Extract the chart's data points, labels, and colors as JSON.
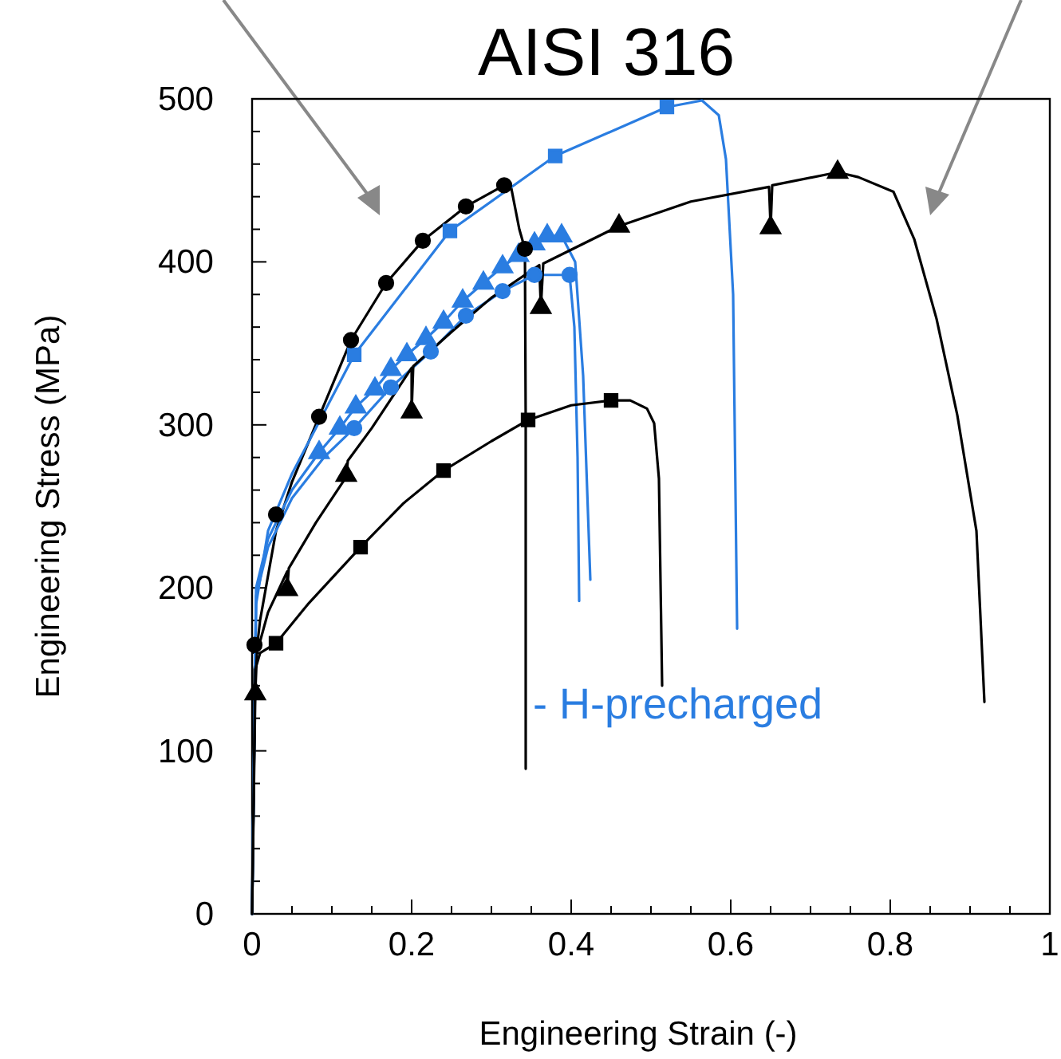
{
  "chart_data": {
    "type": "line",
    "title": "AISI 316",
    "xlabel": "Engineering Strain (-)",
    "ylabel": "Engineering Stress (MPa)",
    "annotations": [
      "- H-precharged"
    ],
    "xlim": [
      0,
      1
    ],
    "ylim": [
      0,
      500
    ],
    "grid": false,
    "line_style": "solid",
    "xticks": [
      0,
      {
        "value": 0.05,
        "label": null
      },
      0.2,
      {
        "value": 0.1,
        "label": null
      },
      {
        "value": 0.15,
        "label": null
      },
      {
        "value": 0.25,
        "label": null
      },
      {
        "value": 0.3,
        "label": null
      },
      {
        "value": 0.35,
        "label": null
      },
      0.4,
      {
        "value": 0.45,
        "label": null
      },
      {
        "value": 0.5,
        "label": null
      },
      {
        "value": 0.55,
        "label": null
      },
      0.6,
      {
        "value": 0.65,
        "label": null
      },
      {
        "value": 0.7,
        "label": null
      },
      {
        "value": 0.75,
        "label": null
      },
      0.8,
      {
        "value": 0.85,
        "label": null
      },
      {
        "value": 0.9,
        "label": null
      },
      {
        "value": 0.95,
        "label": null
      },
      1
    ],
    "yticks": [
      0,
      {
        "value": 20,
        "label": null
      },
      {
        "value": 40,
        "label": null
      },
      {
        "value": 60,
        "label": null
      },
      {
        "value": 80,
        "label": null
      },
      100,
      {
        "value": 120,
        "label": null
      },
      {
        "value": 140,
        "label": null
      },
      {
        "value": 160,
        "label": null
      },
      {
        "value": 180,
        "label": null
      },
      200,
      {
        "value": 220,
        "label": null
      },
      {
        "value": 240,
        "label": null
      },
      {
        "value": 260,
        "label": null
      },
      {
        "value": 280,
        "label": null
      },
      300,
      {
        "value": 320,
        "label": null
      },
      {
        "value": 340,
        "label": null
      },
      {
        "value": 360,
        "label": null
      },
      {
        "value": 380,
        "label": null
      },
      400,
      {
        "value": 420,
        "label": null
      },
      {
        "value": 440,
        "label": null
      },
      {
        "value": 460,
        "label": null
      },
      {
        "value": 480,
        "label": null
      },
      500
    ],
    "series": [
      {
        "marker": "none",
        "color": "#000000",
        "x": [
          0,
          0.003,
          0.01,
          0.03,
          0.05,
          0.084,
          0.124,
          0.168,
          0.214,
          0.268,
          0.316,
          0.325,
          0.335,
          0.342,
          0.343,
          0.343
        ],
        "values": [
          0,
          150,
          180,
          235,
          265,
          305,
          352,
          387,
          413,
          434,
          447,
          445,
          420,
          408,
          300,
          89
        ]
      },
      {
        "type": "scatter",
        "marker": "circle",
        "color": "#000000",
        "x": [
          0.003,
          0.03,
          0.084,
          0.124,
          0.168,
          0.214,
          0.268,
          0.316,
          0.342
        ],
        "values": [
          165,
          245,
          305,
          352,
          387,
          413,
          434,
          447,
          408
        ]
      },
      {
        "marker": "none",
        "color": "#2a7de1",
        "x": [
          0,
          0.005,
          0.02,
          0.05,
          0.128,
          0.248,
          0.38,
          0.52,
          0.564,
          0.585,
          0.594,
          0.603,
          0.608
        ],
        "values": [
          0,
          190,
          235,
          270,
          343,
          419,
          465,
          495,
          499,
          490,
          463,
          380,
          175
        ]
      },
      {
        "type": "scatter",
        "marker": "square",
        "color": "#2a7de1",
        "x": [
          0.128,
          0.248,
          0.38,
          0.52
        ],
        "values": [
          343,
          419,
          465,
          495
        ]
      },
      {
        "marker": "none",
        "color": "#2a7de1",
        "x": [
          0,
          0.005,
          0.02,
          0.05,
          0.084,
          0.11,
          0.13,
          0.154,
          0.174,
          0.194,
          0.218,
          0.24,
          0.264,
          0.29,
          0.314,
          0.334,
          0.354,
          0.37,
          0.388,
          0.405,
          0.415,
          0.424
        ],
        "values": [
          0,
          200,
          230,
          260,
          283,
          298,
          311,
          322,
          334,
          343,
          353,
          363,
          376,
          387,
          397,
          404,
          411,
          416,
          416,
          400,
          330,
          205
        ]
      },
      {
        "type": "scatter",
        "marker": "triangle",
        "color": "#2a7de1",
        "x": [
          0.084,
          0.11,
          0.13,
          0.154,
          0.174,
          0.194,
          0.218,
          0.24,
          0.264,
          0.29,
          0.314,
          0.334,
          0.354,
          0.37,
          0.388
        ],
        "values": [
          283,
          298,
          311,
          322,
          334,
          343,
          353,
          363,
          376,
          387,
          397,
          404,
          411,
          416,
          416
        ]
      },
      {
        "marker": "none",
        "color": "#2a7de1",
        "x": [
          0,
          0.005,
          0.02,
          0.05,
          0.09,
          0.128,
          0.174,
          0.224,
          0.268,
          0.314,
          0.354,
          0.398,
          0.404,
          0.408,
          0.41
        ],
        "values": [
          0,
          195,
          225,
          255,
          280,
          298,
          323,
          345,
          367,
          382,
          392,
          392,
          360,
          280,
          192
        ]
      },
      {
        "type": "scatter",
        "marker": "circle",
        "color": "#2a7de1",
        "x": [
          0.128,
          0.174,
          0.224,
          0.268,
          0.314,
          0.354,
          0.398
        ],
        "values": [
          298,
          323,
          345,
          367,
          382,
          392,
          392
        ]
      },
      {
        "marker": "none",
        "color": "#000000",
        "x": [
          0,
          0.004,
          0.01,
          0.03,
          0.07,
          0.136,
          0.19,
          0.24,
          0.3,
          0.346,
          0.4,
          0.45,
          0.474,
          0.495,
          0.504,
          0.51,
          0.514
        ],
        "values": [
          0,
          150,
          160,
          166,
          190,
          225,
          252,
          272,
          290,
          303,
          312,
          315,
          315,
          310,
          301,
          267,
          140
        ]
      },
      {
        "type": "scatter",
        "marker": "square",
        "color": "#000000",
        "x": [
          0.03,
          0.136,
          0.24,
          0.346,
          0.45
        ],
        "values": [
          166,
          225,
          272,
          303,
          315
        ]
      },
      {
        "marker": "none",
        "color": "#000000",
        "x": [
          0,
          0.004,
          0.006,
          0.02,
          0.044,
          0.044,
          0.046,
          0.08,
          0.118,
          0.12,
          0.15,
          0.2,
          0.2,
          0.202,
          0.25,
          0.3,
          0.36,
          0.362,
          0.365,
          0.46,
          0.55,
          0.648,
          0.65,
          0.652,
          0.734,
          0.76,
          0.804,
          0.83,
          0.858,
          0.884,
          0.908,
          0.918
        ],
        "values": [
          0,
          135,
          160,
          185,
          210,
          199,
          212,
          240,
          268,
          278,
          298,
          335,
          308,
          336,
          357,
          378,
          398,
          372,
          399,
          422,
          437,
          446,
          421,
          447,
          455,
          452,
          443,
          414,
          365,
          306,
          235,
          130
        ]
      },
      {
        "type": "scatter",
        "marker": "triangle",
        "color": "#000000",
        "x": [
          0.004,
          0.044,
          0.118,
          0.2,
          0.362,
          0.46,
          0.65,
          0.734
        ],
        "values": [
          135,
          199,
          269,
          308,
          372,
          422,
          421,
          455
        ]
      }
    ]
  }
}
